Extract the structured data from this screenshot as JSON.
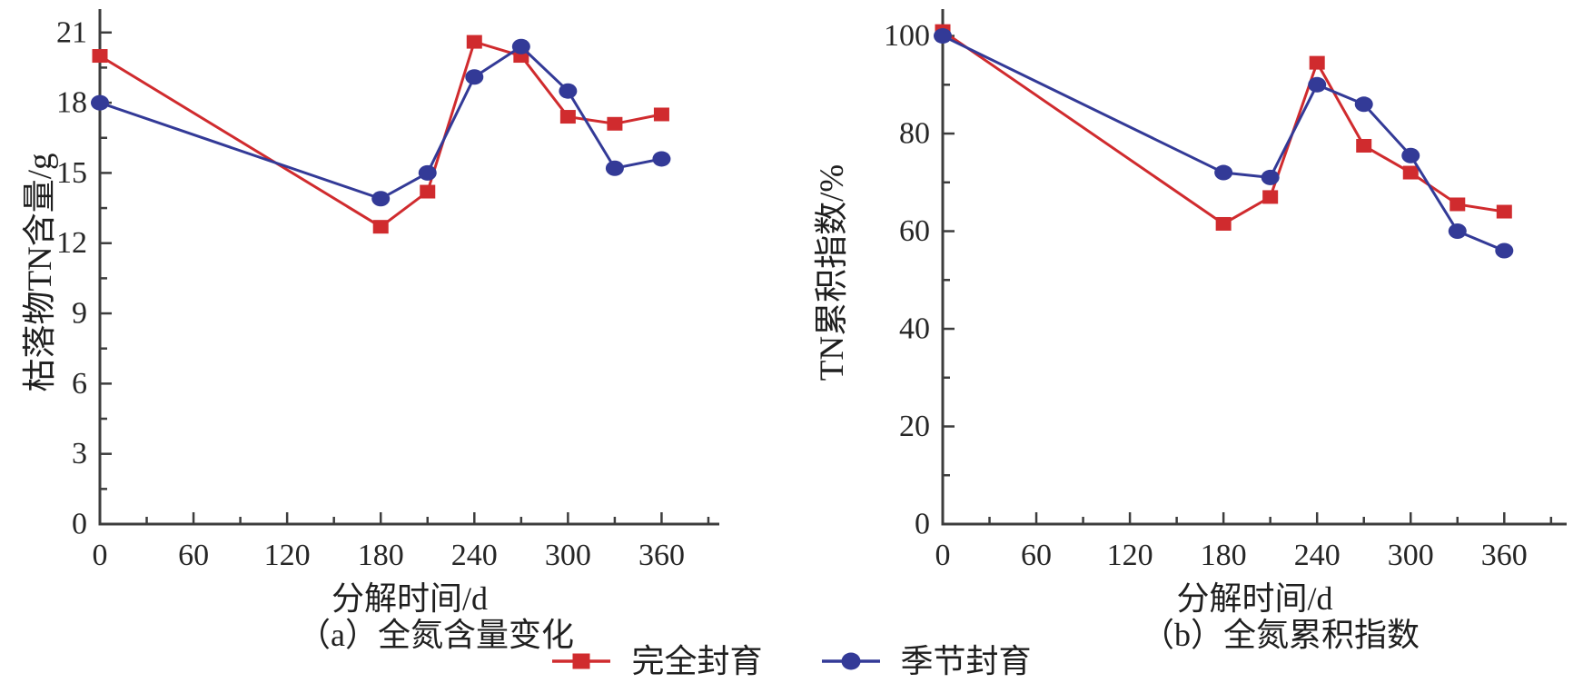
{
  "figure": {
    "axis_color": "#3d3d3d",
    "text_color": "#1f1f1f",
    "legend": [
      {
        "label": "完全封育",
        "marker": "square",
        "color": "#d02b2e"
      },
      {
        "label": "季节封育",
        "marker": "circle",
        "color": "#333a97"
      }
    ]
  },
  "chart_data": [
    {
      "type": "line",
      "caption": "（a）全氮含量变化",
      "xlabel": "分解时间/d",
      "ylabel": "枯落物TN含量/g",
      "xlim": [
        0,
        397
      ],
      "ylim": [
        0,
        22
      ],
      "x_major_ticks": [
        0,
        60,
        120,
        180,
        240,
        300,
        360
      ],
      "x_minor_ticks": [
        30,
        90,
        150,
        210,
        270,
        330,
        390
      ],
      "y_major_ticks": [
        0,
        3,
        6,
        9,
        12,
        15,
        18,
        21
      ],
      "y_minor_ticks": [
        1.5,
        4.5,
        7.5,
        10.5,
        13.5,
        16.5,
        19.5
      ],
      "grid": false,
      "series": [
        {
          "name": "完全封育",
          "marker": "square",
          "color": "#d02b2e",
          "x": [
            0,
            180,
            210,
            240,
            270,
            300,
            330,
            360
          ],
          "y": [
            20.0,
            12.7,
            14.2,
            20.6,
            20.0,
            17.4,
            17.1,
            17.5
          ]
        },
        {
          "name": "季节封育",
          "marker": "circle",
          "color": "#333a97",
          "x": [
            0,
            180,
            210,
            240,
            270,
            300,
            330,
            360
          ],
          "y": [
            18.0,
            13.9,
            15.0,
            19.1,
            20.4,
            18.5,
            15.2,
            15.6
          ]
        }
      ]
    },
    {
      "type": "line",
      "caption": "（b）全氮累积指数",
      "xlabel": "分解时间/d",
      "ylabel": "TN累积指数/%",
      "xlim": [
        0,
        400
      ],
      "ylim": [
        0,
        105.5
      ],
      "x_major_ticks": [
        0,
        60,
        120,
        180,
        240,
        300,
        360
      ],
      "x_minor_ticks": [
        30,
        90,
        150,
        210,
        270,
        330,
        390
      ],
      "y_major_ticks": [
        0,
        20,
        40,
        60,
        80,
        100
      ],
      "y_minor_ticks": [
        10,
        30,
        50,
        70,
        90
      ],
      "grid": false,
      "series": [
        {
          "name": "完全封育",
          "marker": "square",
          "color": "#d02b2e",
          "x": [
            0,
            180,
            210,
            240,
            270,
            300,
            330,
            360
          ],
          "y": [
            101,
            61.5,
            67,
            94.5,
            77.5,
            72,
            65.5,
            64
          ]
        },
        {
          "name": "季节封育",
          "marker": "circle",
          "color": "#333a97",
          "x": [
            0,
            180,
            210,
            240,
            270,
            300,
            330,
            360
          ],
          "y": [
            100,
            72,
            71,
            90,
            86,
            75.5,
            60,
            56
          ]
        }
      ]
    }
  ]
}
